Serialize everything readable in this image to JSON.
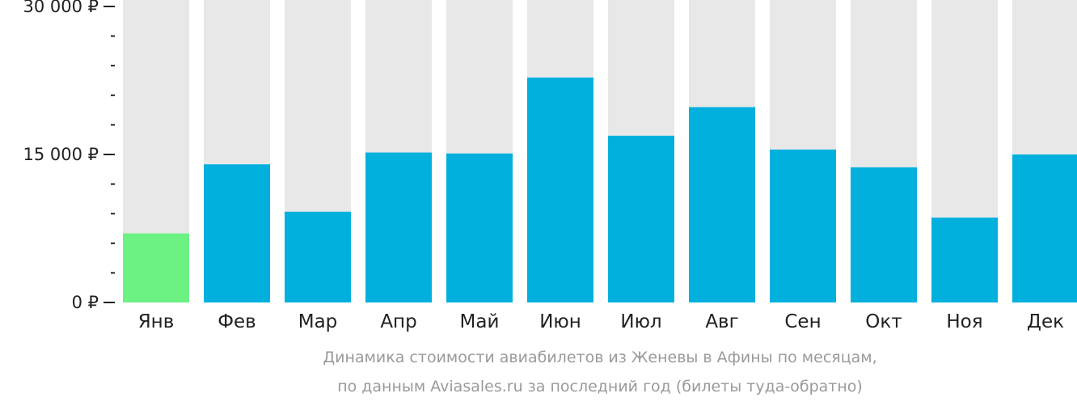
{
  "chart_data": {
    "type": "bar",
    "categories": [
      "Янв",
      "Фев",
      "Мар",
      "Апр",
      "Май",
      "Июн",
      "Июл",
      "Авг",
      "Сен",
      "Окт",
      "Ноя",
      "Дек"
    ],
    "values": [
      7000,
      14000,
      9200,
      15200,
      15100,
      22800,
      16900,
      19800,
      15500,
      13700,
      8600,
      15000
    ],
    "ylim": [
      0,
      30000
    ],
    "y_ticks": [
      {
        "value": 0,
        "label": "0 ₽"
      },
      {
        "value": 15000,
        "label": "15 000 ₽"
      },
      {
        "value": 30000,
        "label": "30 000 ₽"
      }
    ],
    "highlight_index": 0,
    "colors": {
      "bar": "#02b0dd",
      "highlight": "#6cf283",
      "background_column": "#e8e8e9",
      "tick": "#222222"
    },
    "grid": false
  },
  "caption": {
    "line1": "Динамика стоимости авиабилетов из Женевы в Афины по месяцам,",
    "line2": "по данным Aviasales.ru за последний год (билеты туда-обратно)"
  }
}
